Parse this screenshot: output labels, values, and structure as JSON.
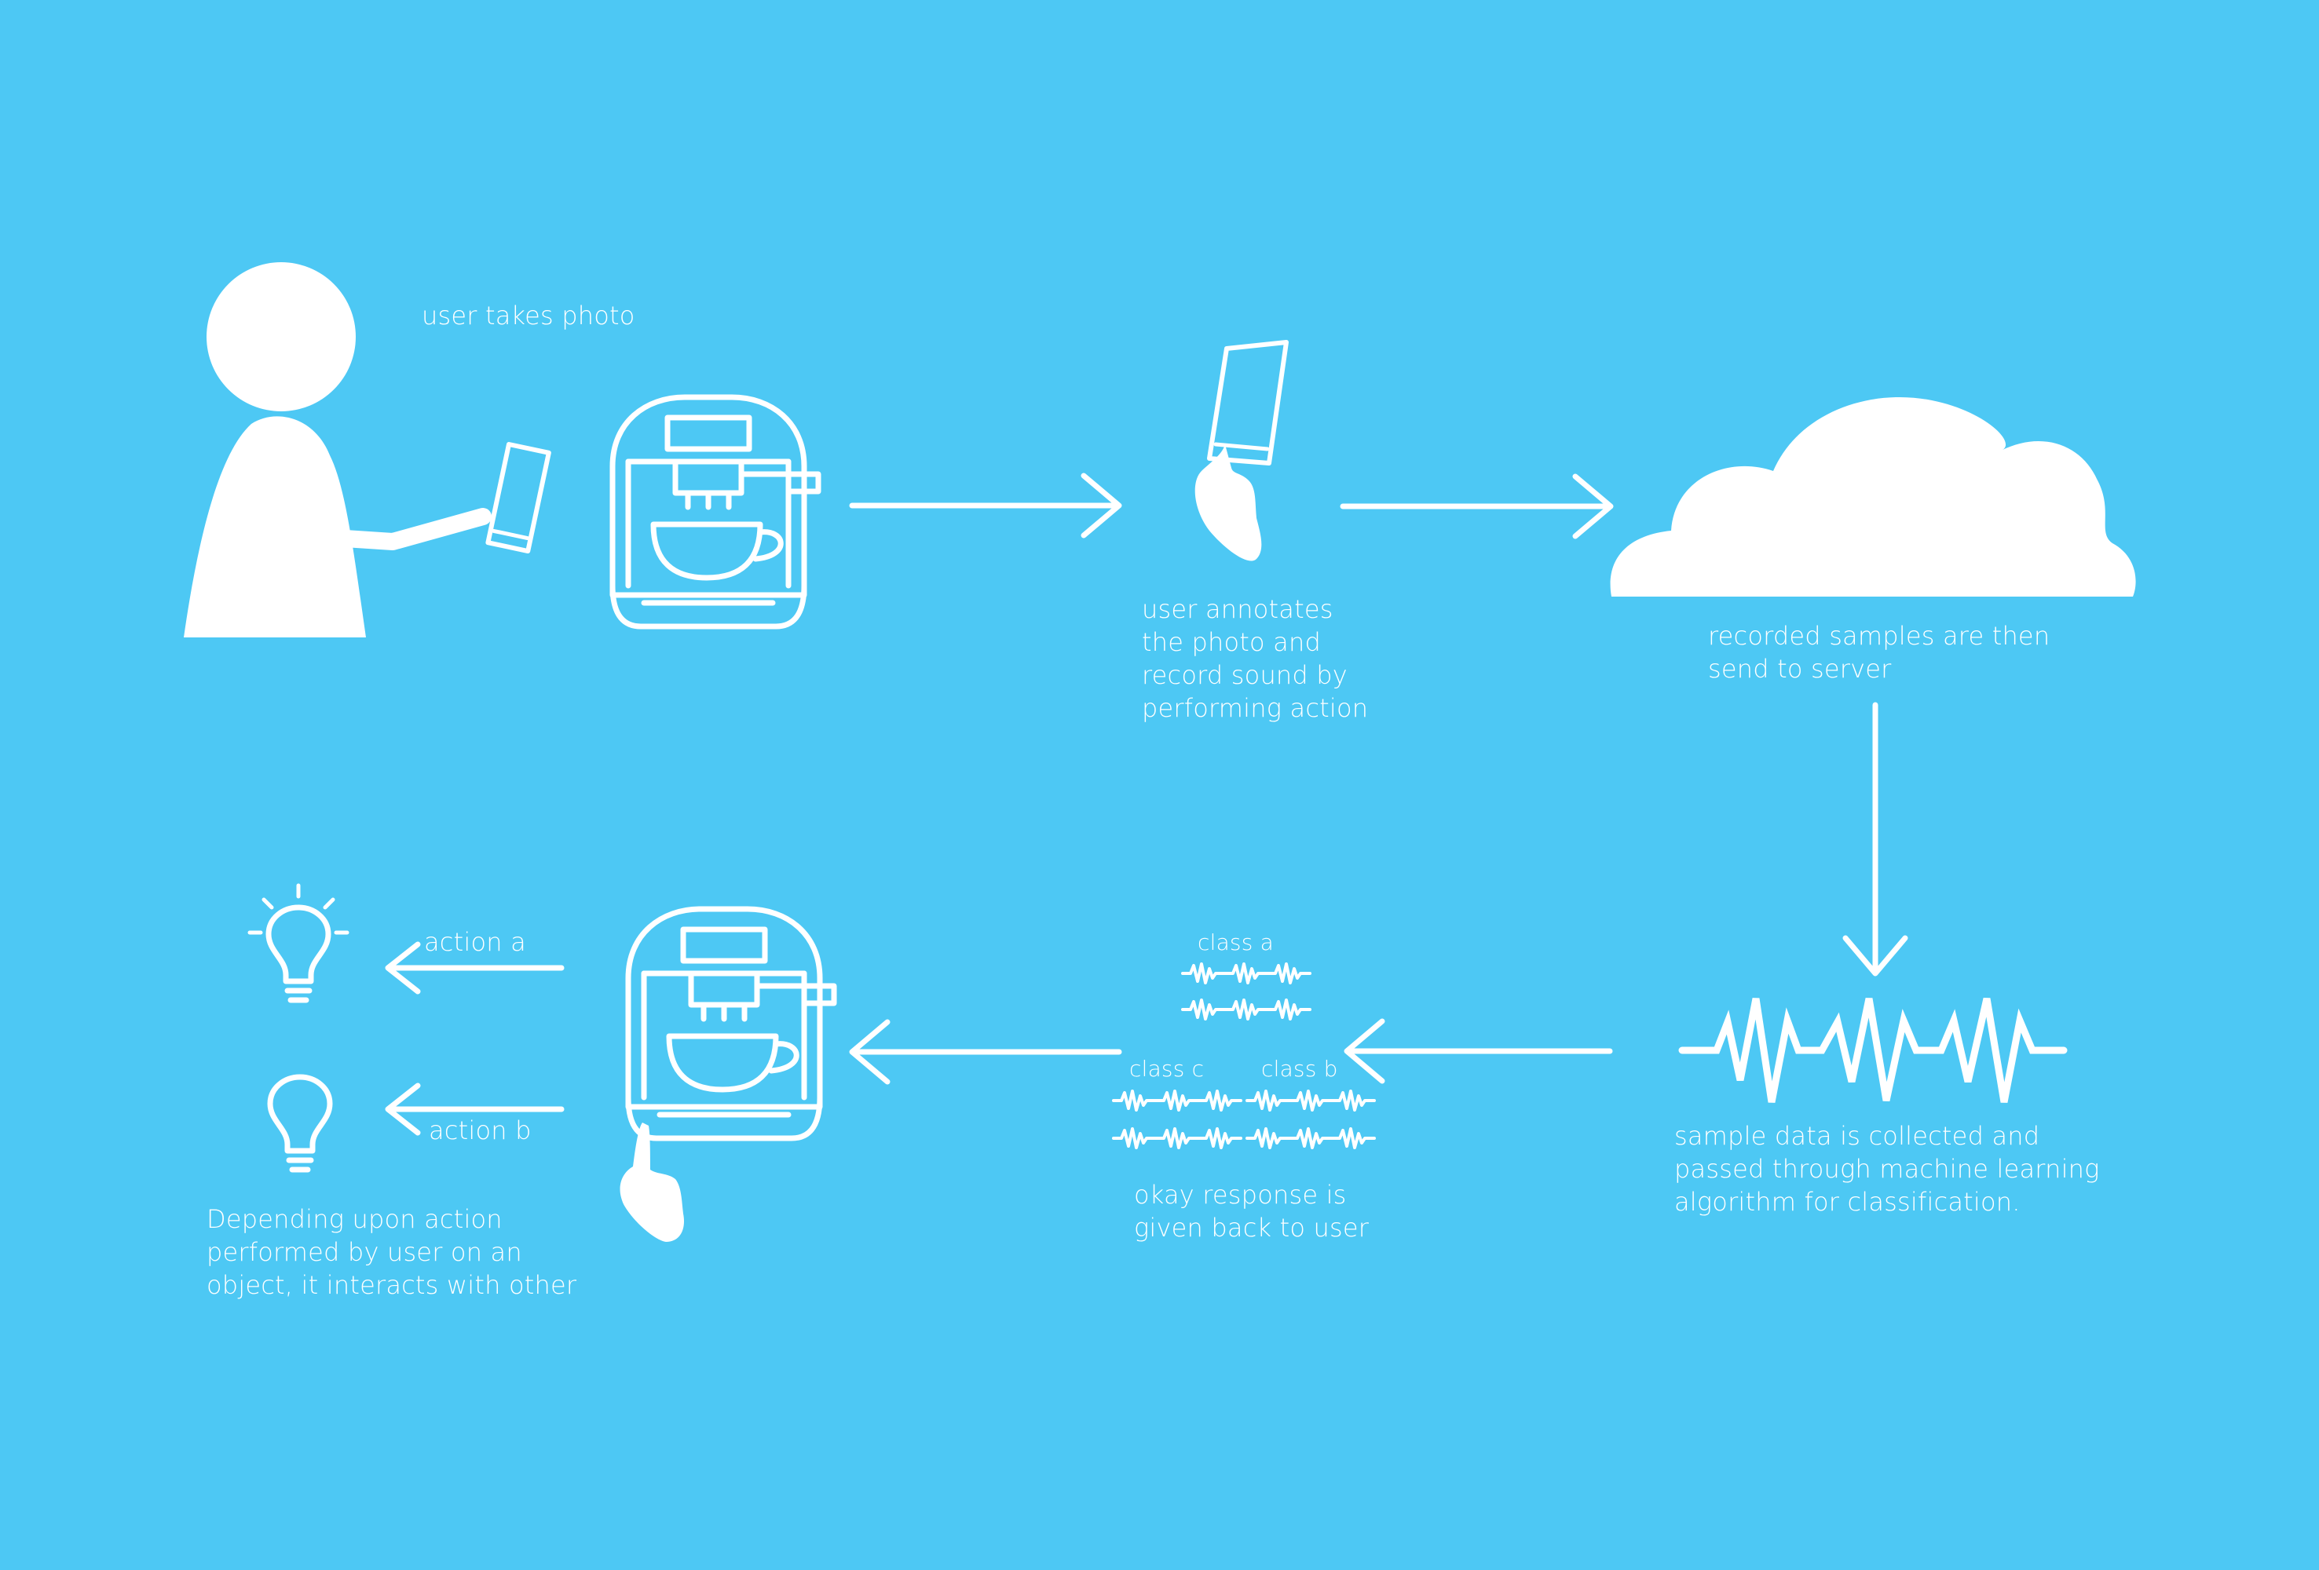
{
  "steps": {
    "take_photo": "user takes photo",
    "annotate": [
      "user annotates",
      "the photo and",
      "record sound by",
      "performing action"
    ],
    "server": [
      "recorded samples are then",
      "send to server"
    ],
    "ml": [
      "sample data is collected and",
      "passed through machine learning",
      "algorithm for classification."
    ],
    "response": [
      "okay response is",
      "given back to user"
    ],
    "outcome": [
      "Depending upon action",
      "performed by user on an",
      "object, it interacts with other"
    ]
  },
  "classes": {
    "a": "class a",
    "b": "class b",
    "c": "class c"
  },
  "actions": {
    "a": "action a",
    "b": "action b"
  },
  "icons": [
    "person-icon",
    "smartphone-icon",
    "coffee-machine-icon",
    "hand-phone-icon",
    "cloud-icon",
    "waveform-icon",
    "lightbulb-on-icon",
    "lightbulb-icon",
    "hand-tap-icon"
  ],
  "colors": {
    "background": "#4DC8F4",
    "foreground": "#FFFFFF"
  }
}
